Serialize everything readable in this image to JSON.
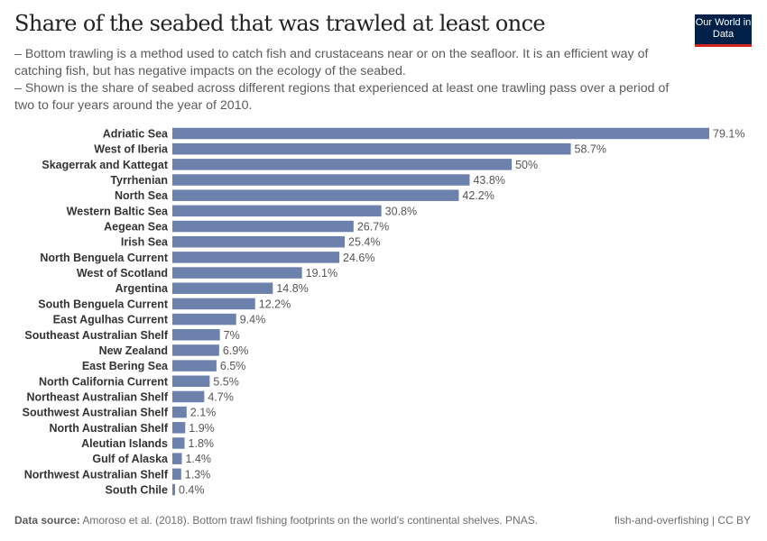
{
  "header": {
    "title": "Share of the seabed that was trawled at least once",
    "subtitle_1": "– Bottom trawling is a method used to catch fish and crustaceans near or on the seafloor. It is an efficient way of catching fish, but has negative impacts on the ecology of the seabed.",
    "subtitle_2": "– Shown is the share of seabed across different regions that experienced at least one trawling pass over a period of two to four years around the year of 2010.",
    "logo": "Our World in Data"
  },
  "footer": {
    "source_label": "Data source:",
    "source_text": " Amoroso et al. (2018). Bottom trawl fishing footprints on the world’s continental shelves. PNAS.",
    "license": "fish-and-overfishing | CC BY"
  },
  "colors": {
    "bar": "#6d81ad",
    "logo_bg": "#002147",
    "logo_accent": "#ce261e"
  },
  "chart_data": {
    "type": "bar",
    "orientation": "horizontal",
    "unit": "%",
    "categories": [
      "Adriatic Sea",
      "West of Iberia",
      "Skagerrak and Kattegat",
      "Tyrrhenian",
      "North Sea",
      "Western Baltic Sea",
      "Aegean Sea",
      "Irish Sea",
      "North Benguela Current",
      "West of Scotland",
      "Argentina",
      "South Benguela Current",
      "East Agulhas Current",
      "Southeast Australian Shelf",
      "New Zealand",
      "East Bering Sea",
      "North California Current",
      "Northeast Australian Shelf",
      "Southwest Australian Shelf",
      "North Australian Shelf",
      "Aleutian Islands",
      "Gulf of Alaska",
      "Northwest Australian Shelf",
      "South Chile"
    ],
    "values": [
      79.1,
      58.7,
      50,
      43.8,
      42.2,
      30.8,
      26.7,
      25.4,
      24.6,
      19.1,
      14.8,
      12.2,
      9.4,
      7,
      6.9,
      6.5,
      5.5,
      4.7,
      2.1,
      1.9,
      1.8,
      1.4,
      1.3,
      0.4
    ],
    "labels": [
      "79.1%",
      "58.7%",
      "50%",
      "43.8%",
      "42.2%",
      "30.8%",
      "26.7%",
      "25.4%",
      "24.6%",
      "19.1%",
      "14.8%",
      "12.2%",
      "9.4%",
      "7%",
      "6.9%",
      "6.5%",
      "5.5%",
      "4.7%",
      "2.1%",
      "1.9%",
      "1.8%",
      "1.4%",
      "1.3%",
      "0.4%"
    ],
    "grid": false
  }
}
